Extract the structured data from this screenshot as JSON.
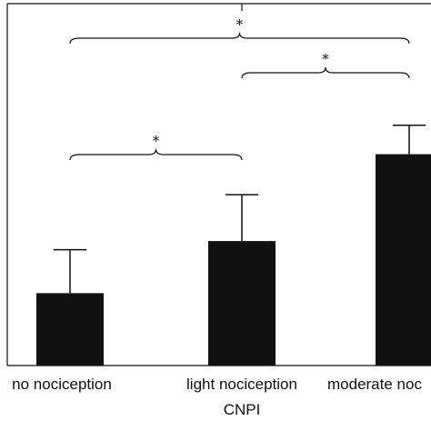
{
  "chart_data": {
    "type": "bar",
    "title": "",
    "xlabel": "CNPI",
    "ylabel": "",
    "categories": [
      "no nociception",
      "light nociception",
      "moderate noc"
    ],
    "values": [
      25,
      43,
      73
    ],
    "error_plus": [
      15,
      16,
      10
    ],
    "ylim": [
      0,
      125
    ],
    "bar_color": "#111111",
    "grid": false,
    "legend": "none",
    "significance": [
      {
        "from": 0,
        "to": 1,
        "label": "*"
      },
      {
        "from": 1,
        "to": 2,
        "label": "*"
      },
      {
        "from": 0,
        "to": 2,
        "label": "*"
      }
    ]
  }
}
